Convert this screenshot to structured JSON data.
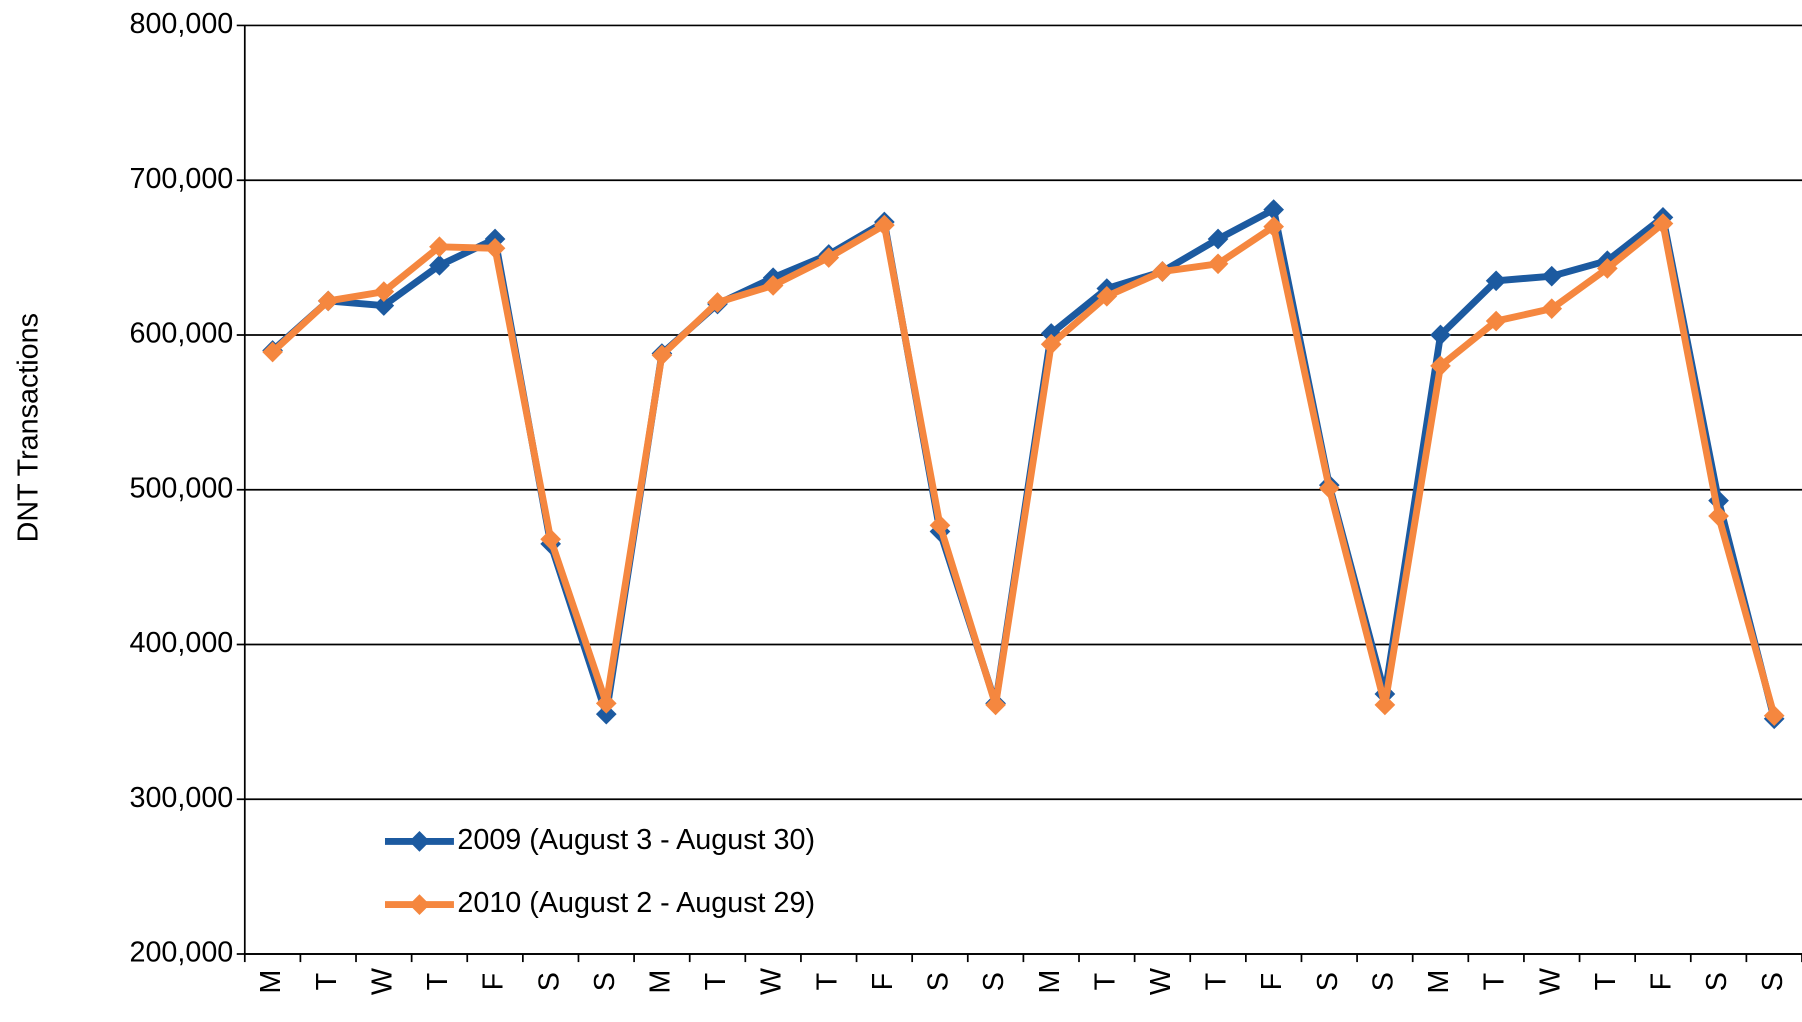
{
  "chart_data": {
    "type": "line",
    "y_label": "DNT Transactions",
    "categories": [
      "M",
      "T",
      "W",
      "T",
      "F",
      "S",
      "S",
      "M",
      "T",
      "W",
      "T",
      "F",
      "S",
      "S",
      "M",
      "T",
      "W",
      "T",
      "F",
      "S",
      "S",
      "M",
      "T",
      "W",
      "T",
      "F",
      "S",
      "S"
    ],
    "series": [
      {
        "name": "2009 (August 3 - August 30)",
        "color": "#1c5aa0",
        "values": [
          590000,
          622000,
          619000,
          645000,
          662000,
          465000,
          355000,
          588000,
          620000,
          637000,
          652000,
          673000,
          473000,
          362000,
          601000,
          630000,
          641000,
          662000,
          681000,
          503000,
          368000,
          600000,
          635000,
          638000,
          648000,
          676000,
          493000,
          352000
        ]
      },
      {
        "name": "2010 (August 2 - August 29)",
        "color": "#f5873f",
        "values": [
          589000,
          622000,
          628000,
          657000,
          656000,
          468000,
          362000,
          587000,
          621000,
          632000,
          650000,
          671000,
          477000,
          361000,
          594000,
          625000,
          641000,
          646000,
          670000,
          501000,
          361000,
          580000,
          609000,
          617000,
          643000,
          672000,
          483000,
          354000
        ]
      }
    ],
    "ylim": [
      200000,
      800000
    ],
    "yticks": [
      {
        "value": 200000,
        "label": "200,000"
      },
      {
        "value": 300000,
        "label": "300,000"
      },
      {
        "value": 400000,
        "label": "400,000"
      },
      {
        "value": 500000,
        "label": "500,000"
      },
      {
        "value": 600000,
        "label": "600,000"
      },
      {
        "value": 700000,
        "label": "700,000"
      },
      {
        "value": 800000,
        "label": "800,000"
      }
    ],
    "grid": true,
    "legend": "lower left"
  }
}
